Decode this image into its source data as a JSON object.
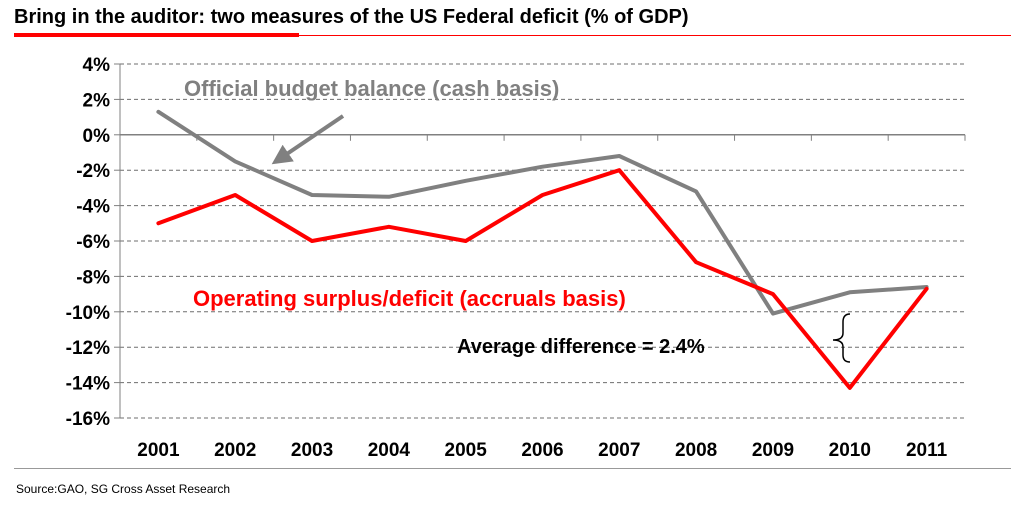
{
  "header": {
    "title": "Bring in the auditor: two measures of the US Federal deficit (% of GDP)"
  },
  "chart_data": {
    "type": "line",
    "categories": [
      "2001",
      "2002",
      "2003",
      "2004",
      "2005",
      "2006",
      "2007",
      "2008",
      "2009",
      "2010",
      "2011"
    ],
    "ylim": [
      -16,
      4
    ],
    "yticks": [
      "4%",
      "2%",
      "0%",
      "-2%",
      "-4%",
      "-6%",
      "-8%",
      "-10%",
      "-12%",
      "-14%",
      "-16%"
    ],
    "grid": true,
    "series": [
      {
        "name": "Official budget balance (cash basis)",
        "color": "#808080",
        "values": [
          1.3,
          -1.5,
          -3.4,
          -3.5,
          -2.6,
          -1.8,
          -1.2,
          -3.2,
          -10.1,
          -8.9,
          -8.6
        ]
      },
      {
        "name": "Operating surplus/deficit (accruals basis)",
        "color": "#ff0000",
        "values": [
          -5.0,
          -3.4,
          -6.0,
          -5.2,
          -6.0,
          -3.4,
          -2.0,
          -7.2,
          -9.0,
          -14.3,
          -8.7
        ]
      }
    ],
    "annotations": {
      "average_difference": "Average difference = 2.4%"
    }
  },
  "footer": {
    "source": "Source:GAO,  SG Cross Asset Research"
  }
}
